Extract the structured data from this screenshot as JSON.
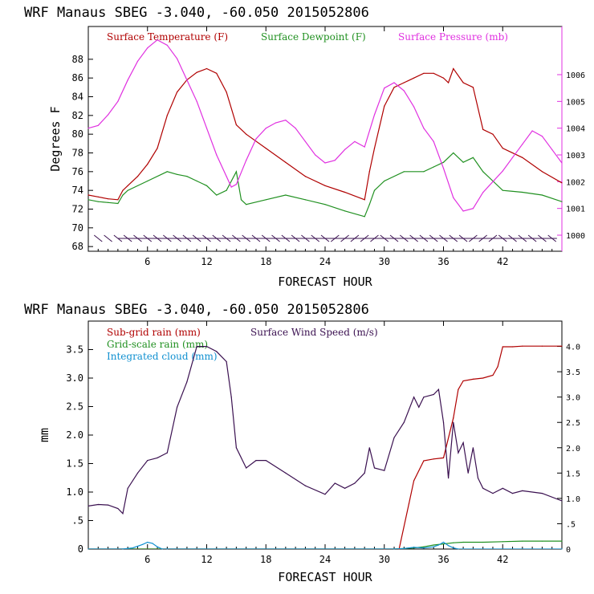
{
  "chart_data": [
    {
      "type": "line",
      "title": "WRF   Manaus SBEG   -3.040, -60.050  2015052806",
      "xlabel": "FORECAST HOUR",
      "ylabel": "Degrees F",
      "xlim": [
        0,
        48
      ],
      "ylim": [
        67.5,
        91.5
      ],
      "y2lim": [
        999.4,
        1007.8
      ],
      "x_ticks": [
        "6",
        "12",
        "18",
        "24",
        "30",
        "36",
        "42"
      ],
      "y_ticks": [
        "68",
        "70",
        "72",
        "74",
        "76",
        "78",
        "80",
        "82",
        "84",
        "86",
        "88"
      ],
      "y2_ticks": [
        "1000",
        "1001",
        "1002",
        "1003",
        "1004",
        "1005",
        "1006"
      ],
      "legend_placement": "top",
      "series": [
        {
          "name": "Surface Temperature (F)",
          "color": "#b00000",
          "axis": "left",
          "x": [
            0,
            1,
            2,
            3,
            3.5,
            4,
            5,
            6,
            7,
            8,
            9,
            10,
            11,
            12,
            13,
            14,
            15,
            16,
            18,
            20,
            22,
            24,
            26,
            28,
            28.5,
            29,
            30,
            31,
            32,
            33,
            34,
            35,
            36,
            36.5,
            37,
            38,
            39,
            40,
            41,
            42,
            44,
            46,
            48
          ],
          "y": [
            73.5,
            73.3,
            73.1,
            73,
            74,
            74.5,
            75.5,
            76.8,
            78.5,
            82,
            84.5,
            85.8,
            86.6,
            87,
            86.5,
            84.5,
            81,
            80,
            78.5,
            77,
            75.5,
            74.5,
            73.8,
            73,
            76,
            78.5,
            83,
            85,
            85.5,
            86,
            86.5,
            86.5,
            86,
            85.5,
            87,
            85.5,
            85,
            80.5,
            80,
            78.5,
            77.5,
            76,
            74.8
          ]
        },
        {
          "name": "Surface Dewpoint (F)",
          "color": "#209020",
          "axis": "left",
          "x": [
            0,
            1,
            2,
            3,
            3.5,
            4,
            6,
            8,
            9,
            10,
            11,
            12,
            13,
            14,
            15,
            15.5,
            16,
            18,
            20,
            22,
            24,
            26,
            28,
            28.5,
            29,
            30,
            32,
            34,
            35,
            36,
            37,
            38,
            39,
            40,
            41,
            42,
            44,
            46,
            48
          ],
          "y": [
            73,
            72.8,
            72.7,
            72.6,
            73.5,
            74,
            75,
            76,
            75.7,
            75.5,
            75,
            74.5,
            73.5,
            74,
            76,
            73,
            72.5,
            73,
            73.5,
            73,
            72.5,
            71.8,
            71.2,
            72.5,
            74,
            75,
            76,
            76,
            76.5,
            77,
            78,
            77,
            77.5,
            76,
            75,
            74,
            73.8,
            73.5,
            72.8
          ]
        },
        {
          "name": "Surface Pressure (mb)",
          "color": "#e030e0",
          "axis": "right",
          "x": [
            0,
            1,
            2,
            3,
            4,
            5,
            6,
            7,
            8,
            9,
            10,
            11,
            12,
            13,
            14,
            14.5,
            15,
            16,
            17,
            18,
            19,
            20,
            21,
            22,
            23,
            24,
            25,
            26,
            27,
            28,
            29,
            30,
            31,
            32,
            33,
            34,
            35,
            36,
            37,
            38,
            39,
            40,
            41,
            42,
            43,
            44,
            45,
            46,
            47,
            48
          ],
          "y": [
            1004,
            1004.1,
            1004.5,
            1005,
            1005.8,
            1006.5,
            1007,
            1007.3,
            1007.1,
            1006.6,
            1005.8,
            1005,
            1004,
            1003,
            1002.2,
            1001.8,
            1001.9,
            1002.8,
            1003.6,
            1004,
            1004.2,
            1004.3,
            1004,
            1003.5,
            1003,
            1002.7,
            1002.8,
            1003.2,
            1003.5,
            1003.3,
            1004.5,
            1005.5,
            1005.7,
            1005.4,
            1004.8,
            1004,
            1003.5,
            1002.5,
            1001.4,
            1000.9,
            1001,
            1001.6,
            1002,
            1002.4,
            1002.9,
            1003.4,
            1003.9,
            1003.7,
            1003.2,
            1002.7
          ]
        }
      ]
    },
    {
      "type": "line",
      "title": "WRF   Manaus SBEG   -3.040, -60.050  2015052806",
      "xlabel": "FORECAST HOUR",
      "ylabel": "mm",
      "xlim": [
        0,
        48
      ],
      "ylim": [
        0,
        4.0
      ],
      "y2lim": [
        0,
        4.5
      ],
      "x_ticks": [
        "6",
        "12",
        "18",
        "24",
        "30",
        "36",
        "42"
      ],
      "y_ticks": [
        "0",
        ".5",
        "1.0",
        "1.5",
        "2.0",
        "2.5",
        "3.0",
        "3.5"
      ],
      "y2_ticks": [
        "0",
        ".5",
        "1.0",
        "1.5",
        "2.0",
        "2.5",
        "3.0",
        "3.5",
        "4.0"
      ],
      "legend_placement": "top-left",
      "series": [
        {
          "name": "Sub-grid rain (mm)",
          "color": "#b00000",
          "axis": "left",
          "x": [
            0,
            30,
            31.5,
            32.5,
            33,
            34,
            35,
            36,
            37,
            37.5,
            38,
            39,
            40,
            41,
            41.5,
            42,
            43,
            44,
            46,
            48
          ],
          "y": [
            0,
            0,
            0,
            0.8,
            1.2,
            1.55,
            1.58,
            1.6,
            2.3,
            2.8,
            2.95,
            2.98,
            3.0,
            3.05,
            3.2,
            3.55,
            3.55,
            3.56,
            3.56,
            3.56
          ]
        },
        {
          "name": "Grid-scale rain (mm)",
          "color": "#209020",
          "axis": "left",
          "x": [
            0,
            31,
            32,
            33,
            34,
            35,
            36,
            37,
            38,
            40,
            42,
            44,
            46,
            48
          ],
          "y": [
            0,
            0,
            0.01,
            0.02,
            0.04,
            0.07,
            0.09,
            0.11,
            0.12,
            0.12,
            0.13,
            0.14,
            0.14,
            0.14
          ]
        },
        {
          "name": "Integrated cloud (mm)",
          "color": "#1090d0",
          "axis": "left",
          "x": [
            0,
            3.5,
            4.5,
            5.5,
            6,
            6.5,
            7,
            7.5,
            8,
            31,
            32,
            33,
            34,
            35,
            35.5,
            36,
            36.5,
            37,
            37.5,
            38,
            48
          ],
          "y": [
            0,
            0,
            0.02,
            0.08,
            0.12,
            0.1,
            0.04,
            0,
            0,
            0,
            0.01,
            0.03,
            0.02,
            0.04,
            0.07,
            0.12,
            0.06,
            0.02,
            0,
            0,
            0
          ]
        },
        {
          "name": "Surface Wind Speed (m/s)",
          "color": "#3a1050",
          "axis": "right",
          "x": [
            0,
            1,
            2,
            3,
            3.5,
            4,
            5,
            6,
            7,
            8,
            9,
            10,
            11,
            12,
            13,
            14,
            14.5,
            15,
            16,
            17,
            18,
            20,
            22,
            24,
            25,
            26,
            27,
            28,
            28.5,
            29,
            30,
            31,
            32,
            33,
            33.5,
            34,
            35,
            35.5,
            36,
            36.5,
            37,
            37.5,
            38,
            38.5,
            39,
            39.5,
            40,
            41,
            42,
            43,
            44,
            46,
            48
          ],
          "y": [
            0.85,
            0.88,
            0.87,
            0.8,
            0.7,
            1.2,
            1.5,
            1.75,
            1.8,
            1.9,
            2.8,
            3.3,
            4.0,
            4.0,
            3.9,
            3.7,
            3.0,
            2.0,
            1.6,
            1.75,
            1.75,
            1.5,
            1.25,
            1.08,
            1.3,
            1.2,
            1.3,
            1.5,
            2.0,
            1.6,
            1.55,
            2.2,
            2.5,
            3.0,
            2.8,
            3.0,
            3.05,
            3.15,
            2.5,
            1.4,
            2.5,
            1.9,
            2.1,
            1.5,
            2.0,
            1.4,
            1.2,
            1.1,
            1.2,
            1.1,
            1.15,
            1.1,
            0.95
          ]
        }
      ]
    }
  ]
}
